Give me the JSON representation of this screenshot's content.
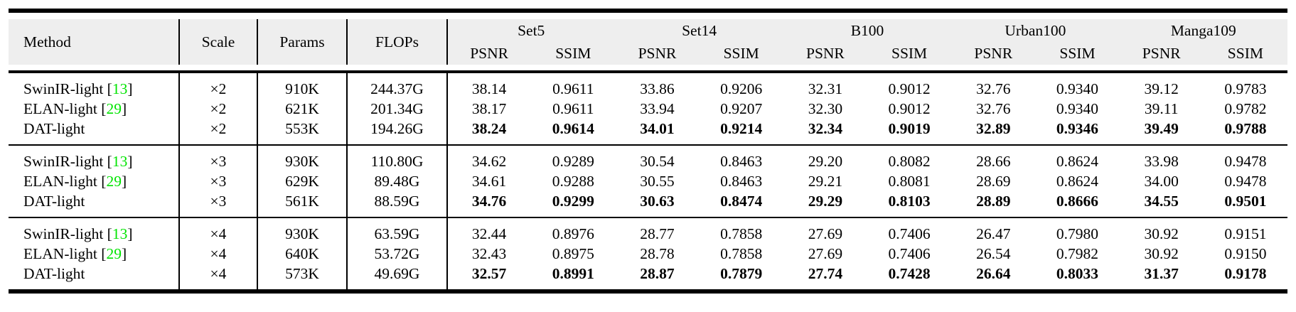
{
  "table": {
    "header": {
      "method": "Method",
      "scale": "Scale",
      "params": "Params",
      "flops": "FLOPs",
      "benchmarks": [
        "Set5",
        "Set14",
        "B100",
        "Urban100",
        "Manga109"
      ],
      "metrics": [
        "PSNR",
        "SSIM"
      ]
    },
    "groups": [
      {
        "scale_factor": "×2",
        "rows": [
          {
            "method": "SwinIR-light",
            "cite": "13",
            "scale": "×2",
            "params": "910K",
            "flops": "244.37G",
            "bold": false,
            "values": [
              "38.14",
              "0.9611",
              "33.86",
              "0.9206",
              "32.31",
              "0.9012",
              "32.76",
              "0.9340",
              "39.12",
              "0.9783"
            ]
          },
          {
            "method": "ELAN-light",
            "cite": "29",
            "scale": "×2",
            "params": "621K",
            "flops": "201.34G",
            "bold": false,
            "values": [
              "38.17",
              "0.9611",
              "33.94",
              "0.9207",
              "32.30",
              "0.9012",
              "32.76",
              "0.9340",
              "39.11",
              "0.9782"
            ]
          },
          {
            "method": "DAT-light",
            "cite": null,
            "scale": "×2",
            "params": "553K",
            "flops": "194.26G",
            "bold": true,
            "values": [
              "38.24",
              "0.9614",
              "34.01",
              "0.9214",
              "32.34",
              "0.9019",
              "32.89",
              "0.9346",
              "39.49",
              "0.9788"
            ]
          }
        ]
      },
      {
        "scale_factor": "×3",
        "rows": [
          {
            "method": "SwinIR-light",
            "cite": "13",
            "scale": "×3",
            "params": "930K",
            "flops": "110.80G",
            "bold": false,
            "values": [
              "34.62",
              "0.9289",
              "30.54",
              "0.8463",
              "29.20",
              "0.8082",
              "28.66",
              "0.8624",
              "33.98",
              "0.9478"
            ]
          },
          {
            "method": "ELAN-light",
            "cite": "29",
            "scale": "×3",
            "params": "629K",
            "flops": "89.48G",
            "bold": false,
            "values": [
              "34.61",
              "0.9288",
              "30.55",
              "0.8463",
              "29.21",
              "0.8081",
              "28.69",
              "0.8624",
              "34.00",
              "0.9478"
            ]
          },
          {
            "method": "DAT-light",
            "cite": null,
            "scale": "×3",
            "params": "561K",
            "flops": "88.59G",
            "bold": true,
            "values": [
              "34.76",
              "0.9299",
              "30.63",
              "0.8474",
              "29.29",
              "0.8103",
              "28.89",
              "0.8666",
              "34.55",
              "0.9501"
            ]
          }
        ]
      },
      {
        "scale_factor": "×4",
        "rows": [
          {
            "method": "SwinIR-light",
            "cite": "13",
            "scale": "×4",
            "params": "930K",
            "flops": "63.59G",
            "bold": false,
            "values": [
              "32.44",
              "0.8976",
              "28.77",
              "0.7858",
              "27.69",
              "0.7406",
              "26.47",
              "0.7980",
              "30.92",
              "0.9151"
            ]
          },
          {
            "method": "ELAN-light",
            "cite": "29",
            "scale": "×4",
            "params": "640K",
            "flops": "53.72G",
            "bold": false,
            "values": [
              "32.43",
              "0.8975",
              "28.78",
              "0.7858",
              "27.69",
              "0.7406",
              "26.54",
              "0.7982",
              "30.92",
              "0.9150"
            ]
          },
          {
            "method": "DAT-light",
            "cite": null,
            "scale": "×4",
            "params": "573K",
            "flops": "49.69G",
            "bold": true,
            "values": [
              "32.57",
              "0.8991",
              "28.87",
              "0.7879",
              "27.74",
              "0.7428",
              "26.64",
              "0.8033",
              "31.37",
              "0.9178"
            ]
          }
        ]
      }
    ]
  },
  "colors": {
    "citation": "#00e400",
    "header_bg": "#eeeeee",
    "rule": "#000000",
    "text": "#000000"
  }
}
